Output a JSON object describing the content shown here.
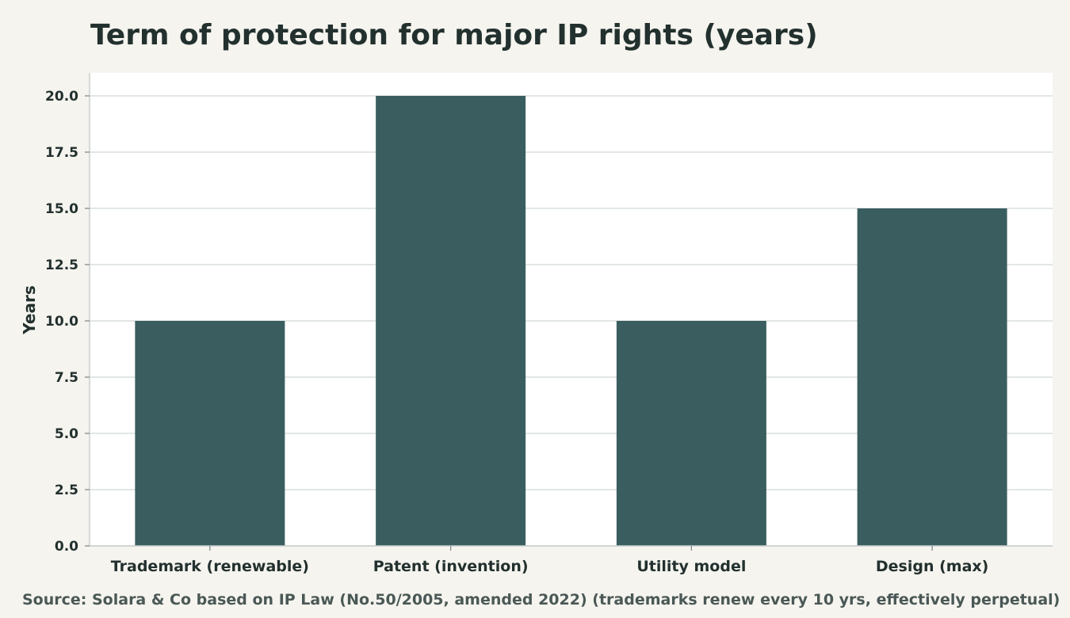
{
  "chart_data": {
    "type": "bar",
    "title": "Term of protection for major IP rights (years)",
    "xlabel": "",
    "ylabel": "Years",
    "categories": [
      "Trademark (renewable)",
      "Patent (invention)",
      "Utility model",
      "Design (max)"
    ],
    "values": [
      10,
      20,
      10,
      15
    ],
    "ylim": [
      0,
      21
    ],
    "yticks": [
      "0.0",
      "2.5",
      "5.0",
      "7.5",
      "10.0",
      "12.5",
      "15.0",
      "17.5",
      "20.0"
    ],
    "grid": true,
    "source": "Source: Solara & Co based on IP Law (No.50/2005, amended 2022) (trademarks renew every 10 yrs, effectively perpetual)"
  },
  "colors": {
    "bar": "#3a5e5f",
    "background": "#f5f4ef",
    "plot_background": "#ffffff",
    "grid": "#d9dedd",
    "text": "#22302e"
  }
}
